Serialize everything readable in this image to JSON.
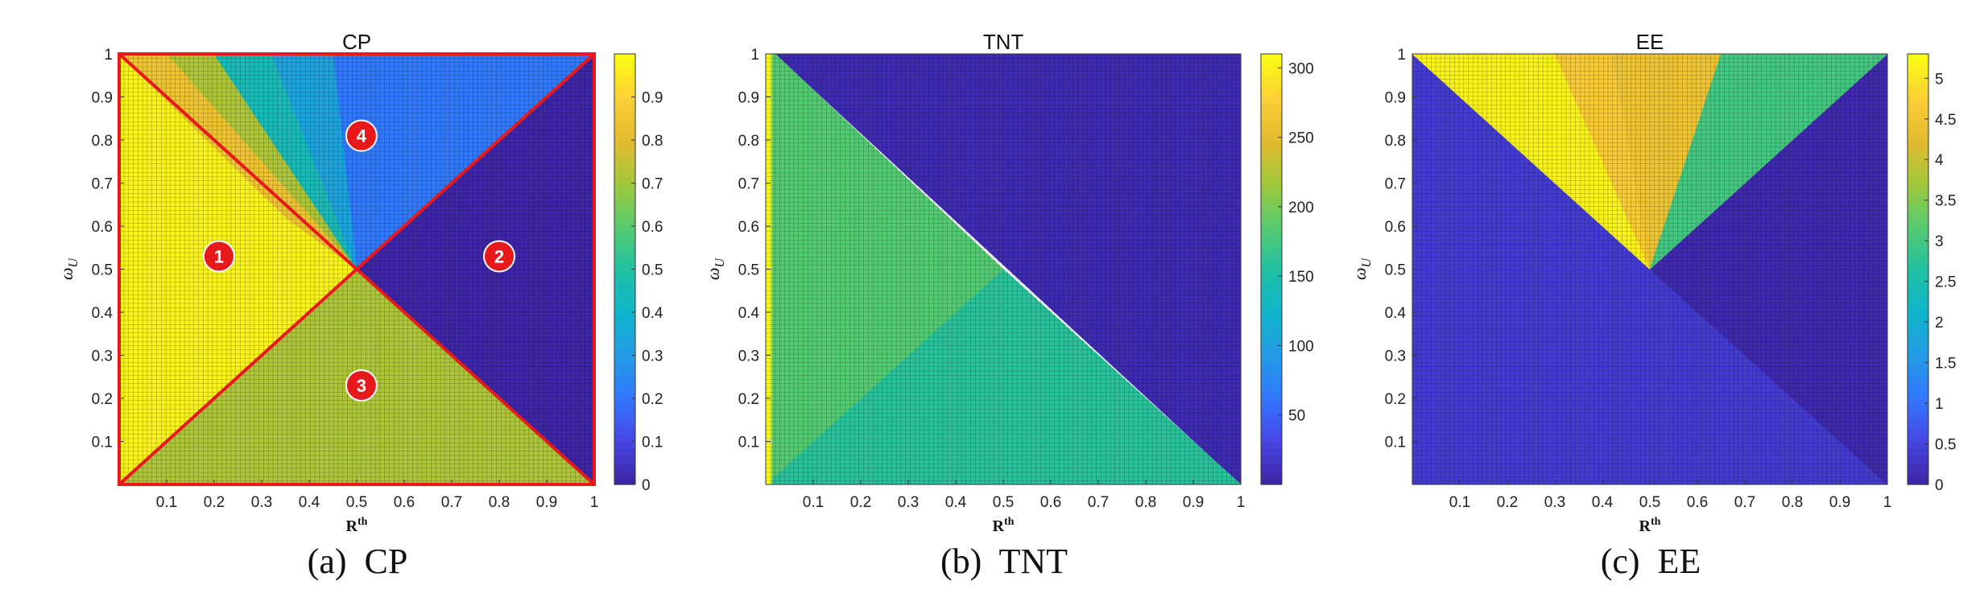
{
  "chart_data": [
    {
      "type": "heatmap",
      "title": "CP",
      "xlabel": "R^th",
      "ylabel": "ω_U",
      "xlim": [
        0,
        1
      ],
      "ylim": [
        0,
        1
      ],
      "grid": true,
      "x_ticks": [
        "0.1",
        "0.2",
        "0.3",
        "0.4",
        "0.5",
        "0.6",
        "0.7",
        "0.8",
        "0.9",
        "1"
      ],
      "y_ticks": [
        "0.1",
        "0.2",
        "0.3",
        "0.4",
        "0.5",
        "0.6",
        "0.7",
        "0.8",
        "0.9",
        "1"
      ],
      "colorbar": {
        "min": 0,
        "max": 1,
        "ticks": [
          "0",
          "0.1",
          "0.2",
          "0.3",
          "0.4",
          "0.5",
          "0.6",
          "0.7",
          "0.8",
          "0.9"
        ]
      },
      "regions": [
        {
          "label": "1",
          "location": "left",
          "value": 0.98
        },
        {
          "label": "2",
          "location": "right",
          "value": 0.0
        },
        {
          "label": "3",
          "location": "bottom",
          "value": 0.72
        },
        {
          "label": "4",
          "location": "top",
          "value": 0.2
        }
      ],
      "annotations": [
        "1",
        "2",
        "3",
        "4"
      ],
      "highlight_color": "#e8191b"
    },
    {
      "type": "heatmap",
      "title": "TNT",
      "xlabel": "R^th",
      "ylabel": "ω_U",
      "xlim": [
        0,
        1
      ],
      "ylim": [
        0,
        1
      ],
      "grid": true,
      "x_ticks": [
        "0.1",
        "0.2",
        "0.3",
        "0.4",
        "0.5",
        "0.6",
        "0.7",
        "0.8",
        "0.9",
        "1"
      ],
      "y_ticks": [
        "0.1",
        "0.2",
        "0.3",
        "0.4",
        "0.5",
        "0.6",
        "0.7",
        "0.8",
        "0.9",
        "1"
      ],
      "colorbar": {
        "min": 0,
        "max": 310,
        "ticks": [
          "50",
          "100",
          "150",
          "200",
          "250",
          "300"
        ]
      },
      "regions": [
        {
          "location": "upper-right",
          "value": 5
        },
        {
          "location": "left",
          "value": 185
        },
        {
          "location": "bottom",
          "value": 160
        },
        {
          "location": "left-edge",
          "value": 310
        }
      ]
    },
    {
      "type": "heatmap",
      "title": "EE",
      "xlabel": "R^th",
      "ylabel": "ω_U",
      "xlim": [
        0,
        1
      ],
      "ylim": [
        0,
        1
      ],
      "grid": true,
      "x_ticks": [
        "0.1",
        "0.2",
        "0.3",
        "0.4",
        "0.5",
        "0.6",
        "0.7",
        "0.8",
        "0.9",
        "1"
      ],
      "y_ticks": [
        "0.1",
        "0.2",
        "0.3",
        "0.4",
        "0.5",
        "0.6",
        "0.7",
        "0.8",
        "0.9",
        "1"
      ],
      "colorbar": {
        "min": 0,
        "max": 5.3,
        "ticks": [
          "0",
          "0.5",
          "1",
          "1.5",
          "2",
          "2.5",
          "3",
          "3.5",
          "4",
          "4.5",
          "5"
        ]
      },
      "regions": [
        {
          "location": "lower-left",
          "value": 0.35
        },
        {
          "location": "right",
          "value": 0.05
        },
        {
          "location": "top-center",
          "value": 4.5
        },
        {
          "location": "top-left",
          "value": 5.2
        },
        {
          "location": "top-right",
          "value": 3.0
        }
      ]
    }
  ],
  "captions": [
    "(a)  CP",
    "(b)  TNT",
    "(c)  EE"
  ]
}
